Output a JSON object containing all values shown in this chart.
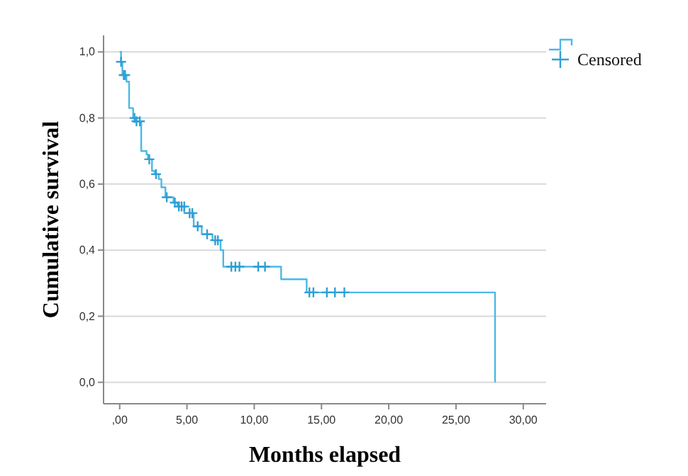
{
  "chart_data": {
    "type": "step",
    "xlabel": "Months elapsed",
    "ylabel": "Cumulative survival",
    "xlim": [
      -1.2,
      31.7
    ],
    "ylim": [
      -0.065,
      1.05
    ],
    "xticks": [
      {
        "value": 0,
        "label": ",00"
      },
      {
        "value": 5,
        "label": "5,00"
      },
      {
        "value": 10,
        "label": "10,00"
      },
      {
        "value": 15,
        "label": "15,00"
      },
      {
        "value": 20,
        "label": "20,00"
      },
      {
        "value": 25,
        "label": "25,00"
      },
      {
        "value": 30,
        "label": "30,00"
      }
    ],
    "yticks": [
      {
        "value": 0,
        "label": "0,0"
      },
      {
        "value": 0.2,
        "label": "0,2"
      },
      {
        "value": 0.4,
        "label": "0,4"
      },
      {
        "value": 0.6,
        "label": "0,6"
      },
      {
        "value": 0.8,
        "label": "0,8"
      },
      {
        "value": 1,
        "label": "1,0"
      }
    ],
    "grid": "y",
    "legend": "top right",
    "series": [
      {
        "color": "#4bb8e6",
        "x": [
          0,
          0.1,
          0.2,
          0.5,
          0.7,
          1.0,
          1.2,
          1.6,
          2.0,
          2.1,
          2.4,
          2.6,
          2.9,
          3.1,
          3.4,
          4.0,
          4.3,
          4.8,
          5.5,
          6.1,
          6.9,
          7.5,
          7.7,
          12.0,
          13.9,
          27.9
        ],
        "values": [
          1.0,
          0.97,
          0.93,
          0.91,
          0.83,
          0.8,
          0.79,
          0.7,
          0.69,
          0.675,
          0.64,
          0.63,
          0.615,
          0.59,
          0.56,
          0.544,
          0.532,
          0.512,
          0.472,
          0.448,
          0.43,
          0.4,
          0.35,
          0.312,
          0.272,
          0
        ]
      },
      {
        "type": "scatter",
        "name": "Censored",
        "marker": "cross",
        "color": "#2f9fd4",
        "x": [
          0.1,
          0.3,
          0.4,
          1.1,
          1.25,
          1.5,
          2.2,
          2.7,
          3.5,
          4.1,
          4.4,
          4.6,
          4.8,
          5.2,
          5.4,
          5.8,
          6.5,
          7.1,
          7.3,
          8.3,
          8.6,
          8.9,
          10.3,
          10.8,
          14.1,
          14.4,
          15.4,
          16.0,
          16.7
        ],
        "values": [
          0.97,
          0.93,
          0.93,
          0.8,
          0.79,
          0.79,
          0.675,
          0.63,
          0.56,
          0.544,
          0.532,
          0.532,
          0.532,
          0.512,
          0.512,
          0.472,
          0.448,
          0.43,
          0.43,
          0.35,
          0.35,
          0.35,
          0.35,
          0.35,
          0.272,
          0.272,
          0.272,
          0.272,
          0.272
        ]
      }
    ]
  }
}
